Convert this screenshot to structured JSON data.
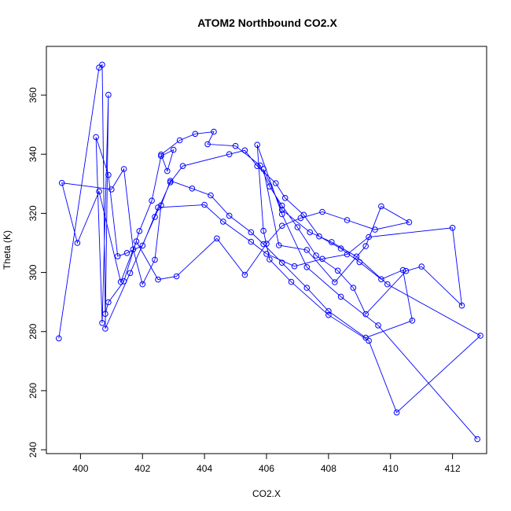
{
  "chart_data": {
    "type": "line",
    "title": "ATOM2 Northbound CO2.X",
    "xlabel": "CO2.X",
    "ylabel": "Theta (K)",
    "xlim": [
      398.9,
      413.1
    ],
    "ylim": [
      238.7,
      376.5
    ],
    "x_ticks": [
      "400",
      "402",
      "404",
      "406",
      "408",
      "410",
      "412"
    ],
    "y_ticks": [
      "240",
      "260",
      "280",
      "300",
      "320",
      "340",
      "360"
    ],
    "grid": false,
    "marker": "open-circle",
    "color": "#0000ff",
    "x": [
      399.3,
      400.6,
      400.7,
      400.8,
      400.9,
      401.4,
      401.9,
      402.3,
      402.6,
      403.0,
      402.8,
      402.6,
      403.2,
      403.7,
      404.3,
      404.1,
      405.0,
      405.8,
      406.1,
      406.5,
      407.0,
      407.6,
      408.3,
      408.8,
      409.2,
      410.5,
      411.0,
      412.3,
      412.0,
      409.3,
      408.6,
      407.8,
      406.9,
      406.0,
      405.5,
      404.6,
      404.0,
      402.5,
      402.0,
      401.5,
      401.2,
      400.9,
      400.5,
      400.7,
      400.9,
      400.8,
      401.6,
      402.4,
      402.9,
      403.3,
      404.8,
      405.3,
      405.7,
      406.3,
      406.6,
      407.2,
      407.7,
      408.4,
      409.0,
      409.7,
      410.4,
      410.7,
      409.2,
      408.0,
      407.3,
      406.5,
      405.9,
      405.5,
      404.8,
      404.2,
      403.6,
      402.9,
      402.6,
      402.4,
      402.0,
      401.7,
      401.4,
      401.0,
      399.4,
      399.9,
      400.6,
      401.3,
      401.8,
      402.5,
      403.1,
      404.4,
      405.3,
      406.0,
      406.5,
      407.1,
      407.8,
      408.6,
      409.5,
      410.6,
      409.7,
      409.2,
      408.2,
      407.3,
      406.4,
      405.9,
      406.5,
      407.4,
      408.1,
      408.9,
      409.9,
      412.9,
      410.2,
      409.3,
      408.0,
      406.8,
      406.1,
      405.9,
      405.7,
      406.5,
      407.3,
      408.4,
      409.6,
      412.8
    ],
    "y": [
      277.7,
      369.3,
      370.3,
      286.0,
      289.9,
      297.0,
      314.0,
      324.3,
      339.4,
      341.5,
      334.3,
      339.9,
      344.7,
      346.9,
      347.6,
      343.4,
      342.8,
      336.2,
      329.1,
      322.6,
      315.3,
      305.7,
      300.6,
      294.8,
      285.9,
      300.5,
      302.0,
      288.8,
      315.1,
      312.0,
      306.1,
      304.6,
      302.1,
      306.3,
      310.4,
      317.2,
      322.9,
      322.0,
      309.1,
      306.6,
      305.5,
      333.0,
      345.8,
      282.9,
      360.1,
      281.0,
      299.8,
      318.8,
      330.5,
      336.0,
      340.0,
      341.3,
      336.0,
      330.2,
      325.2,
      319.5,
      312.2,
      308.1,
      303.5,
      297.7,
      300.8,
      283.7,
      277.9,
      286.9,
      294.8,
      303.3,
      309.6,
      313.6,
      319.2,
      326.1,
      328.4,
      331.0,
      322.7,
      304.3,
      296.0,
      307.8,
      335.0,
      328.1,
      330.3,
      310.0,
      327.4,
      296.8,
      310.5,
      297.6,
      298.7,
      311.5,
      299.2,
      309.7,
      315.8,
      318.4,
      320.5,
      317.7,
      314.5,
      317.0,
      322.4,
      308.9,
      296.7,
      307.6,
      309.2,
      335.0,
      321.2,
      313.6,
      310.3,
      305.4,
      296.0,
      278.6,
      252.6,
      276.9,
      285.6,
      296.8,
      304.4,
      314.1,
      343.2,
      319.7,
      301.8,
      291.8,
      282.1,
      243.6
    ]
  }
}
